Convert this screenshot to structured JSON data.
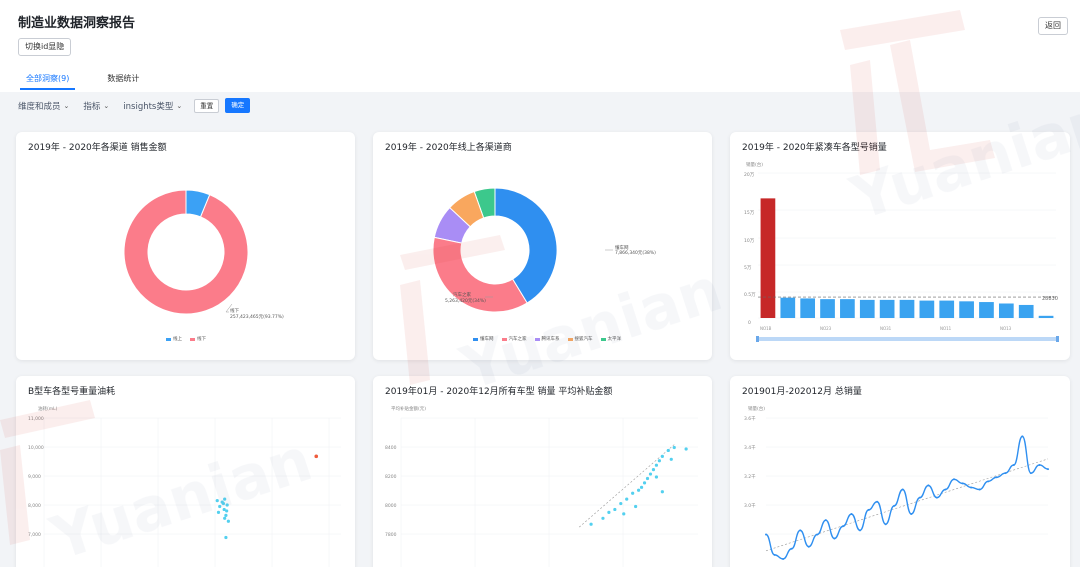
{
  "header": {
    "title": "制造业数据洞察报告",
    "toggle_label": "切换id显隐",
    "back_label": "返回"
  },
  "tabs": [
    {
      "label": "全部洞察(9)",
      "active": true
    },
    {
      "label": "数据统计",
      "active": false
    }
  ],
  "filters": {
    "items": [
      {
        "label": "维度和成员"
      },
      {
        "label": "指标"
      },
      {
        "label": "insights类型"
      }
    ],
    "reset_label": "重置",
    "ok_label": "确定"
  },
  "watermark": {
    "brand": "元年",
    "text": "Yuanian"
  },
  "cards": {
    "channel_sales": {
      "title": "2019年 - 2020年各渠道 销售金额",
      "callout_name": "线下",
      "callout_value": "257,423,465元(93.77%)",
      "legend": [
        "线上",
        "线下"
      ]
    },
    "online_channels": {
      "title": "2019年 - 2020年线上各渠道商",
      "callout1_name": "懂车网",
      "callout1_value": "7,866,340元(38%)",
      "callout2_name": "汽车之家",
      "callout2_value": "5,263,420元(34%)",
      "legend": [
        "懂车网",
        "汽车之家",
        "腾讯车系",
        "搜狐汽车",
        "太平洋"
      ]
    },
    "compact_models": {
      "title": "2019年 - 2020年紧凑车各型号销量",
      "ylabel": "销量(台)",
      "yticks": [
        "20万",
        "15万",
        "10万",
        "5万",
        "0.5万",
        "0"
      ],
      "avg_label": "28830",
      "xticks": [
        "NO1B",
        "NO23",
        "NO31",
        "NO11",
        "NO13"
      ]
    },
    "b_fuel": {
      "title": "B型车各型号重量油耗",
      "ylabel": "油耗(mL)",
      "yticks": [
        "11,000",
        "10,000",
        "9,000",
        "8,000",
        "7,000"
      ]
    },
    "subsidy": {
      "title": "2019年01月 - 2020年12月所有车型 销量 平均补贴金额",
      "ylabel": "平均补贴金额(元)",
      "yticks": [
        "8400",
        "8200",
        "8000",
        "7800"
      ]
    },
    "total_sales": {
      "title": "201901月-202012月 总销量",
      "ylabel": "销量(台)",
      "yticks": [
        "3.6千",
        "3.4千",
        "3.2千",
        "3.0千"
      ]
    }
  },
  "chart_data": [
    {
      "type": "pie",
      "title": "2019年 - 2020年各渠道 销售金额",
      "categories": [
        "线上",
        "线下"
      ],
      "values": [
        6.23,
        93.77
      ],
      "colors": [
        "#3ba1f5",
        "#fb7c8a"
      ]
    },
    {
      "type": "pie",
      "title": "2019年 - 2020年线上各渠道商",
      "categories": [
        "懂车网",
        "汽车之家",
        "腾讯车系",
        "搜狐汽车",
        "太平洋"
      ],
      "values": [
        38,
        34,
        8,
        7,
        5
      ],
      "colors": [
        "#2f8ff0",
        "#fb7c8a",
        "#a98df5",
        "#f9a75e",
        "#3cc88c"
      ]
    },
    {
      "type": "bar",
      "title": "2019年 - 2020年紧凑车各型号销量",
      "categories": [
        "NO1B",
        "",
        "",
        "NO23",
        "",
        "",
        "NO31",
        "",
        "",
        "NO11",
        "",
        "",
        "NO13",
        "",
        ""
      ],
      "values": [
        16.5,
        2.8,
        2.7,
        2.6,
        2.6,
        2.5,
        2.5,
        2.5,
        2.4,
        2.4,
        2.3,
        2.2,
        2.0,
        1.8,
        0.3
      ],
      "ylim": [
        0,
        20
      ],
      "average": 2.883
    },
    {
      "type": "scatter",
      "title": "B型车各型号重量油耗",
      "ylim": [
        7000,
        11000
      ],
      "points": [
        {
          "x": 1700,
          "y": 8200
        },
        {
          "x": 1710,
          "y": 8000
        },
        {
          "x": 1705,
          "y": 7800
        },
        {
          "x": 1720,
          "y": 8150
        },
        {
          "x": 1730,
          "y": 8250
        },
        {
          "x": 1725,
          "y": 8100
        },
        {
          "x": 1728,
          "y": 7900
        },
        {
          "x": 1735,
          "y": 7700
        },
        {
          "x": 1740,
          "y": 8050
        },
        {
          "x": 1738,
          "y": 7850
        },
        {
          "x": 1745,
          "y": 7500
        },
        {
          "x": 1730,
          "y": 7600
        },
        {
          "x": 1735,
          "y": 6950
        }
      ],
      "outlier": {
        "x": 2100,
        "y": 9700
      },
      "xlim": [
        1000,
        2200
      ]
    },
    {
      "type": "scatter",
      "title": "2019年01月 - 2020年12月所有车型 销量 平均补贴金额",
      "ylim": [
        7700,
        8500
      ],
      "xlim": [
        0,
        100
      ],
      "points": [
        {
          "x": 64,
          "y": 7780
        },
        {
          "x": 68,
          "y": 7820
        },
        {
          "x": 70,
          "y": 7860
        },
        {
          "x": 72,
          "y": 7880
        },
        {
          "x": 74,
          "y": 7920
        },
        {
          "x": 76,
          "y": 7950
        },
        {
          "x": 78,
          "y": 7990
        },
        {
          "x": 80,
          "y": 8010
        },
        {
          "x": 81,
          "y": 8030
        },
        {
          "x": 82,
          "y": 8060
        },
        {
          "x": 83,
          "y": 8090
        },
        {
          "x": 84,
          "y": 8120
        },
        {
          "x": 85,
          "y": 8150
        },
        {
          "x": 86,
          "y": 8180
        },
        {
          "x": 87,
          "y": 8210
        },
        {
          "x": 88,
          "y": 8240
        },
        {
          "x": 90,
          "y": 8280
        },
        {
          "x": 92,
          "y": 8300
        },
        {
          "x": 96,
          "y": 8290
        },
        {
          "x": 79,
          "y": 7900
        },
        {
          "x": 86,
          "y": 8100
        },
        {
          "x": 88,
          "y": 8000
        },
        {
          "x": 75,
          "y": 7850
        },
        {
          "x": 91,
          "y": 8220
        }
      ],
      "trend": [
        [
          60,
          7760
        ],
        [
          92,
          8320
        ]
      ]
    },
    {
      "type": "line",
      "title": "201901月-202012月 总销量",
      "ylim": [
        2950,
        3650
      ],
      "values": [
        3080,
        2980,
        2960,
        3010,
        3100,
        3020,
        3080,
        3150,
        3060,
        3120,
        3180,
        3100,
        3200,
        3240,
        3130,
        3220,
        3300,
        3180,
        3260,
        3320,
        3260,
        3300,
        3350,
        3330,
        3310,
        3300,
        3340,
        3360,
        3380,
        3420,
        3560,
        3380,
        3420,
        3400
      ],
      "trend": [
        [
          0,
          3000
        ],
        [
          33,
          3450
        ]
      ]
    }
  ]
}
